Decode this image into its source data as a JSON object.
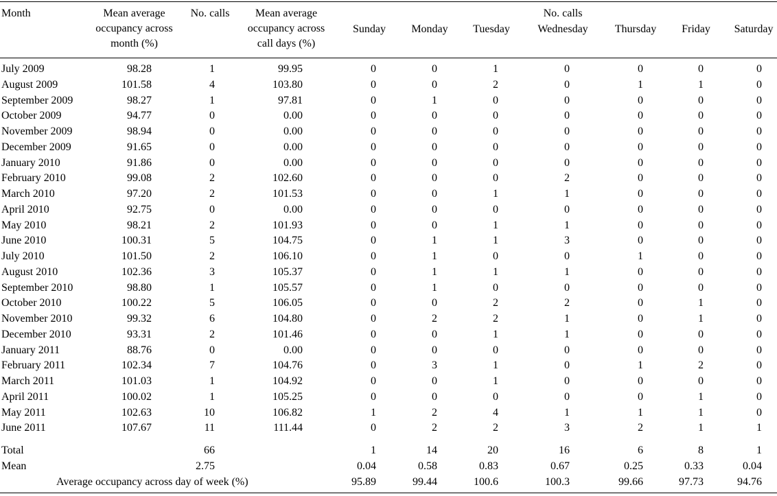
{
  "headers": {
    "month": "Month",
    "mean_month": [
      "Mean average",
      "occupancy across",
      "month (%)"
    ],
    "no_calls": "No. calls",
    "mean_call_days": [
      "Mean average",
      "occupancy across",
      "call days (%)"
    ],
    "no_calls_group": "No. calls",
    "days": [
      "Sunday",
      "Monday",
      "Tuesday",
      "Wednesday",
      "Thursday",
      "Friday",
      "Saturday"
    ]
  },
  "rows": [
    {
      "month": "July 2009",
      "mean_month": "98.28",
      "calls": "1",
      "mean_call_days": "99.95",
      "days": [
        "0",
        "0",
        "1",
        "0",
        "0",
        "0",
        "0"
      ]
    },
    {
      "month": "August 2009",
      "mean_month": "101.58",
      "calls": "4",
      "mean_call_days": "103.80",
      "days": [
        "0",
        "0",
        "2",
        "0",
        "1",
        "1",
        "0"
      ]
    },
    {
      "month": "September 2009",
      "mean_month": "98.27",
      "calls": "1",
      "mean_call_days": "97.81",
      "days": [
        "0",
        "1",
        "0",
        "0",
        "0",
        "0",
        "0"
      ]
    },
    {
      "month": "October 2009",
      "mean_month": "94.77",
      "calls": "0",
      "mean_call_days": "0.00",
      "days": [
        "0",
        "0",
        "0",
        "0",
        "0",
        "0",
        "0"
      ]
    },
    {
      "month": "November 2009",
      "mean_month": "98.94",
      "calls": "0",
      "mean_call_days": "0.00",
      "days": [
        "0",
        "0",
        "0",
        "0",
        "0",
        "0",
        "0"
      ]
    },
    {
      "month": "December 2009",
      "mean_month": "91.65",
      "calls": "0",
      "mean_call_days": "0.00",
      "days": [
        "0",
        "0",
        "0",
        "0",
        "0",
        "0",
        "0"
      ]
    },
    {
      "month": "January 2010",
      "mean_month": "91.86",
      "calls": "0",
      "mean_call_days": "0.00",
      "days": [
        "0",
        "0",
        "0",
        "0",
        "0",
        "0",
        "0"
      ]
    },
    {
      "month": "February 2010",
      "mean_month": "99.08",
      "calls": "2",
      "mean_call_days": "102.60",
      "days": [
        "0",
        "0",
        "0",
        "2",
        "0",
        "0",
        "0"
      ]
    },
    {
      "month": "March 2010",
      "mean_month": "97.20",
      "calls": "2",
      "mean_call_days": "101.53",
      "days": [
        "0",
        "0",
        "1",
        "1",
        "0",
        "0",
        "0"
      ]
    },
    {
      "month": "April 2010",
      "mean_month": "92.75",
      "calls": "0",
      "mean_call_days": "0.00",
      "days": [
        "0",
        "0",
        "0",
        "0",
        "0",
        "0",
        "0"
      ]
    },
    {
      "month": "May 2010",
      "mean_month": "98.21",
      "calls": "2",
      "mean_call_days": "101.93",
      "days": [
        "0",
        "0",
        "1",
        "1",
        "0",
        "0",
        "0"
      ]
    },
    {
      "month": "June 2010",
      "mean_month": "100.31",
      "calls": "5",
      "mean_call_days": "104.75",
      "days": [
        "0",
        "1",
        "1",
        "3",
        "0",
        "0",
        "0"
      ]
    },
    {
      "month": "July 2010",
      "mean_month": "101.50",
      "calls": "2",
      "mean_call_days": "106.10",
      "days": [
        "0",
        "1",
        "0",
        "0",
        "1",
        "0",
        "0"
      ]
    },
    {
      "month": "August 2010",
      "mean_month": "102.36",
      "calls": "3",
      "mean_call_days": "105.37",
      "days": [
        "0",
        "1",
        "1",
        "1",
        "0",
        "0",
        "0"
      ]
    },
    {
      "month": "September 2010",
      "mean_month": "98.80",
      "calls": "1",
      "mean_call_days": "105.57",
      "days": [
        "0",
        "1",
        "0",
        "0",
        "0",
        "0",
        "0"
      ]
    },
    {
      "month": "October 2010",
      "mean_month": "100.22",
      "calls": "5",
      "mean_call_days": "106.05",
      "days": [
        "0",
        "0",
        "2",
        "2",
        "0",
        "1",
        "0"
      ]
    },
    {
      "month": "November 2010",
      "mean_month": "99.32",
      "calls": "6",
      "mean_call_days": "104.80",
      "days": [
        "0",
        "2",
        "2",
        "1",
        "0",
        "1",
        "0"
      ]
    },
    {
      "month": "December 2010",
      "mean_month": "93.31",
      "calls": "2",
      "mean_call_days": "101.46",
      "days": [
        "0",
        "0",
        "1",
        "1",
        "0",
        "0",
        "0"
      ]
    },
    {
      "month": "January 2011",
      "mean_month": "88.76",
      "calls": "0",
      "mean_call_days": "0.00",
      "days": [
        "0",
        "0",
        "0",
        "0",
        "0",
        "0",
        "0"
      ]
    },
    {
      "month": "February 2011",
      "mean_month": "102.34",
      "calls": "7",
      "mean_call_days": "104.76",
      "days": [
        "0",
        "3",
        "1",
        "0",
        "1",
        "2",
        "0"
      ]
    },
    {
      "month": "March 2011",
      "mean_month": "101.03",
      "calls": "1",
      "mean_call_days": "104.92",
      "days": [
        "0",
        "0",
        "1",
        "0",
        "0",
        "0",
        "0"
      ]
    },
    {
      "month": "April 2011",
      "mean_month": "100.02",
      "calls": "1",
      "mean_call_days": "105.25",
      "days": [
        "0",
        "0",
        "0",
        "0",
        "0",
        "1",
        "0"
      ]
    },
    {
      "month": "May 2011",
      "mean_month": "102.63",
      "calls": "10",
      "mean_call_days": "106.82",
      "days": [
        "1",
        "2",
        "4",
        "1",
        "1",
        "1",
        "0"
      ]
    },
    {
      "month": "June 2011",
      "mean_month": "107.67",
      "calls": "11",
      "mean_call_days": "111.44",
      "days": [
        "0",
        "2",
        "2",
        "3",
        "2",
        "1",
        "1"
      ]
    }
  ],
  "total": {
    "label": "Total",
    "calls": "66",
    "days": [
      "1",
      "14",
      "20",
      "16",
      "6",
      "8",
      "1"
    ]
  },
  "mean": {
    "label": "Mean",
    "calls": "2.75",
    "days": [
      "0.04",
      "0.58",
      "0.83",
      "0.67",
      "0.25",
      "0.33",
      "0.04"
    ]
  },
  "avg_occupancy": {
    "label": "Average occupancy across day of week (%)",
    "days": [
      "95.89",
      "99.44",
      "100.6",
      "100.3",
      "99.66",
      "97.73",
      "94.76"
    ]
  }
}
